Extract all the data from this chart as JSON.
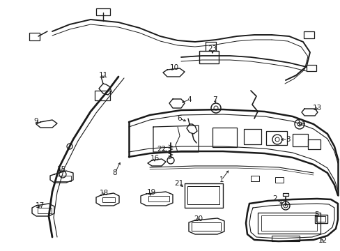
{
  "bg_color": "#ffffff",
  "line_color": "#1a1a1a",
  "label_color": "#1a1a1a",
  "label_fontsize": 7.5,
  "fig_width": 4.89,
  "fig_height": 3.6,
  "dpi": 100
}
